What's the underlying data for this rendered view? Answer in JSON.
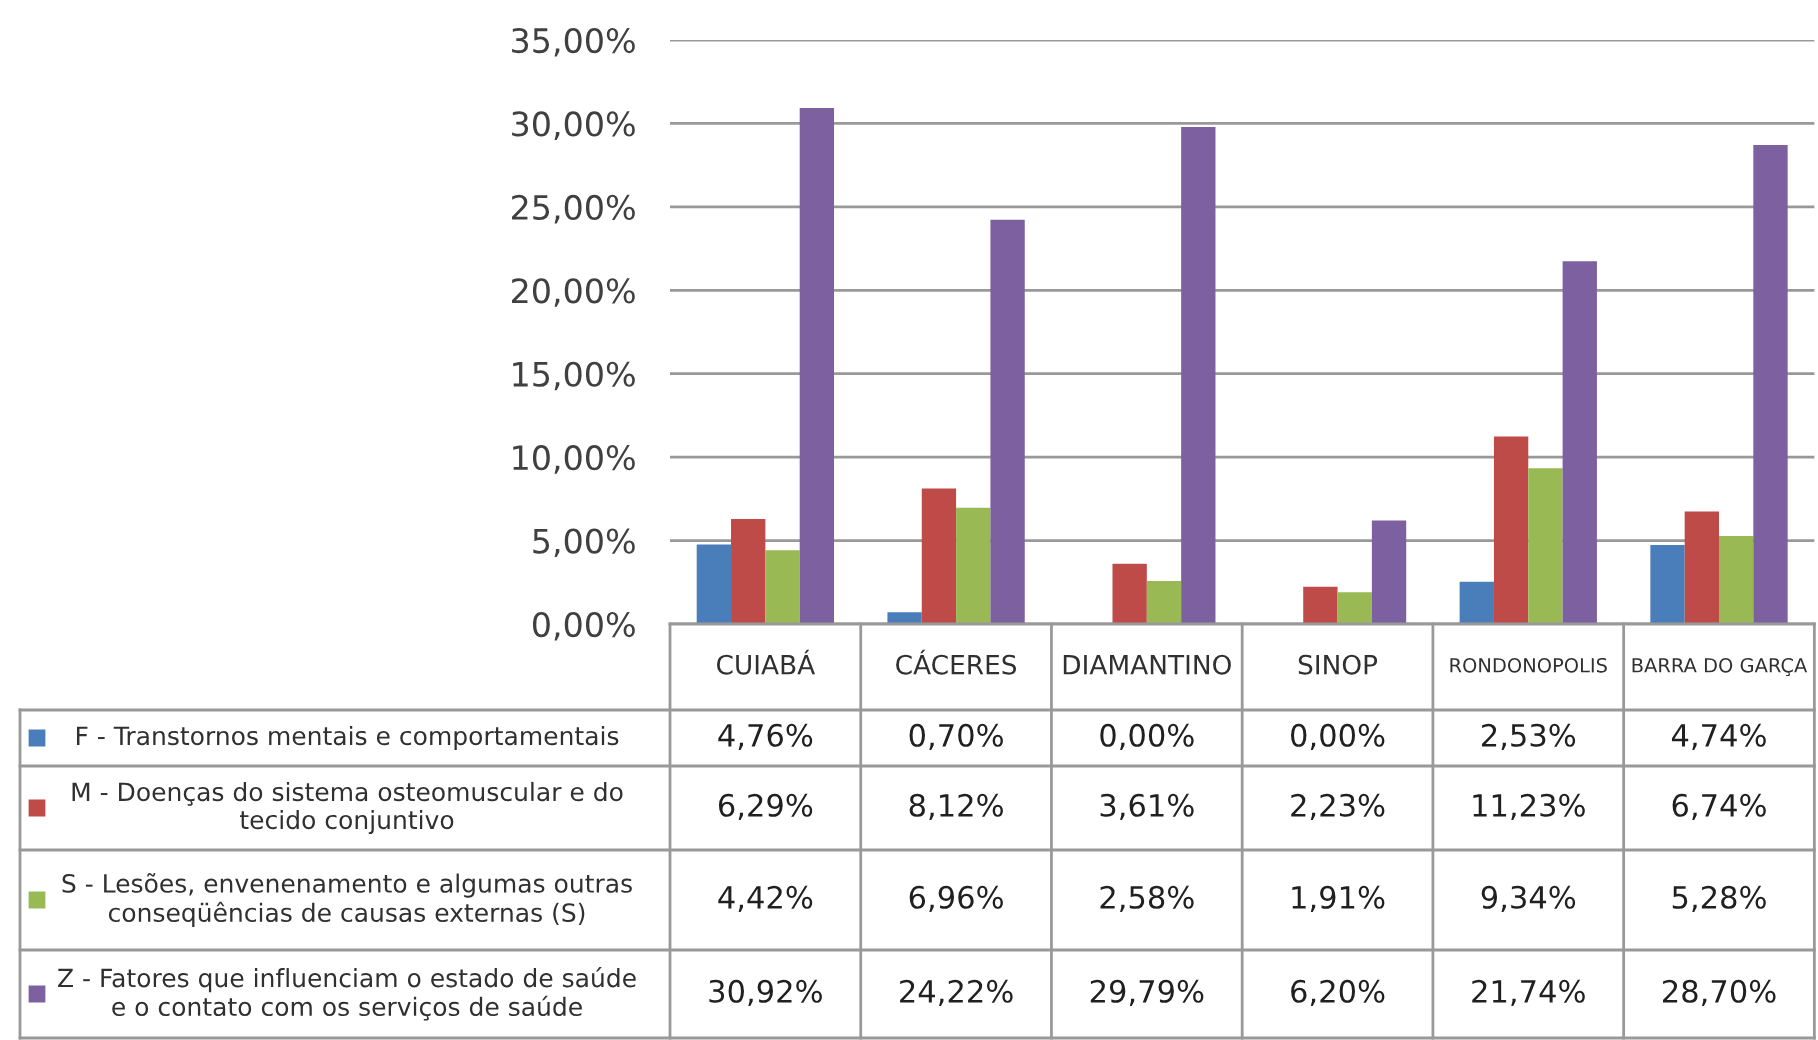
{
  "chart_data": {
    "type": "bar",
    "categories": [
      "CUIABÁ",
      "CÁCERES",
      "DIAMANTINO",
      "SINOP",
      "RONDONOPOLIS",
      "BARRA DO GARÇA"
    ],
    "series": [
      {
        "name": "F - Transtornos mentais e comportamentais",
        "color": "#4a7ebb",
        "values": [
          4.76,
          0.7,
          0.0,
          0.0,
          2.53,
          4.74
        ],
        "value_labels": [
          "4,76%",
          "0,70%",
          "0,00%",
          "0,00%",
          "2,53%",
          "4,74%"
        ]
      },
      {
        "name": "M - Doenças do sistema osteomuscular e do\ntecido conjuntivo",
        "color": "#be4b48",
        "values": [
          6.29,
          8.12,
          3.61,
          2.23,
          11.23,
          6.74
        ],
        "value_labels": [
          "6,29%",
          "8,12%",
          "3,61%",
          "2,23%",
          "11,23%",
          "6,74%"
        ]
      },
      {
        "name": "S - Lesões, envenenamento e algumas outras\nconseqüências de causas externas (S)",
        "color": "#98b954",
        "values": [
          4.42,
          6.96,
          2.58,
          1.91,
          9.34,
          5.28
        ],
        "value_labels": [
          "4,42%",
          "6,96%",
          "2,58%",
          "1,91%",
          "9,34%",
          "5,28%"
        ]
      },
      {
        "name": "Z - Fatores que influenciam o estado de saúde\ne o contato com os serviços de saúde",
        "color": "#7d60a0",
        "values": [
          30.92,
          24.22,
          29.79,
          6.2,
          21.74,
          28.7
        ],
        "value_labels": [
          "30,92%",
          "24,22%",
          "29,79%",
          "6,20%",
          "21,74%",
          "28,70%"
        ]
      }
    ],
    "ylim": [
      0,
      35
    ],
    "yticks": [
      {
        "value": 0,
        "label": "0,00%"
      },
      {
        "value": 5,
        "label": "5,00%"
      },
      {
        "value": 10,
        "label": "10,00%"
      },
      {
        "value": 15,
        "label": "15,00%"
      },
      {
        "value": 20,
        "label": "20,00%"
      },
      {
        "value": 25,
        "label": "25,00%"
      },
      {
        "value": 30,
        "label": "30,00%"
      },
      {
        "value": 35,
        "label": "35,00%"
      }
    ],
    "grid": "y",
    "legend": "bottom",
    "data_labels": true
  }
}
